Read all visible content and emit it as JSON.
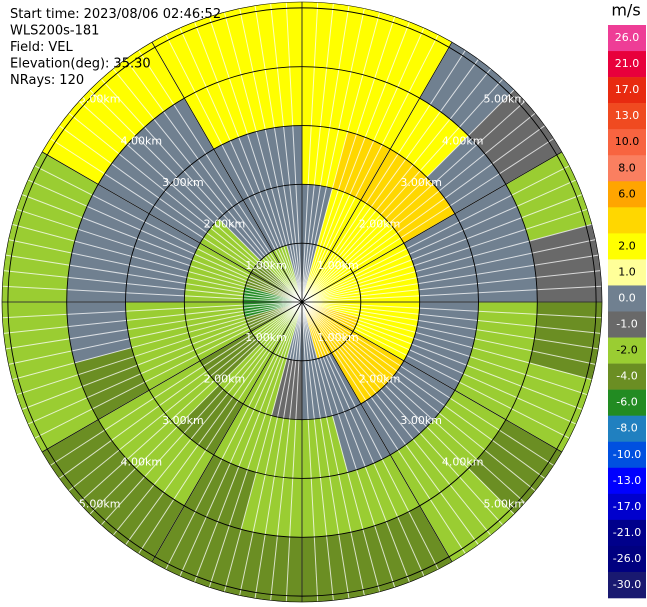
{
  "chart_data": {
    "type": "ppi",
    "info": [
      {
        "label": "Start time:",
        "value": "2023/08/06 02:46:52"
      },
      {
        "label": "",
        "value": "WLS200s-181"
      },
      {
        "label": "Field:",
        "value": "VEL"
      },
      {
        "label": "Elevation(deg):",
        "value": "35.30"
      },
      {
        "label": "NRays:",
        "value": 120
      }
    ],
    "rings": [
      {
        "value": 1,
        "label": "1.00km"
      },
      {
        "value": 2,
        "label": "2.00km"
      },
      {
        "value": 3,
        "label": "3.00km"
      },
      {
        "value": 4,
        "label": "4.00km"
      },
      {
        "value": 5,
        "label": "5.00km"
      }
    ],
    "field": {
      "azimuths": [
        0,
        15,
        30,
        45,
        60,
        75,
        90,
        105,
        120,
        135,
        150,
        165,
        180,
        195,
        210,
        225,
        240,
        255,
        270,
        285,
        300,
        315,
        330,
        345
      ],
      "range_km": [
        0,
        1,
        2,
        3,
        4,
        5.1
      ],
      "values": [
        [
          0.5,
          0.5,
          2.5,
          2.5,
          2.5
        ],
        [
          2.5,
          2.5,
          5,
          2.5,
          2.5
        ],
        [
          2.5,
          2.5,
          5,
          2.5,
          0.5
        ],
        [
          2.5,
          2.5,
          5,
          0.5,
          -0.5
        ],
        [
          2.5,
          2.5,
          0.5,
          0.5,
          -1.5
        ],
        [
          2.5,
          2.5,
          0.5,
          0.5,
          -0.5
        ],
        [
          2.5,
          2.5,
          0.5,
          -1.5,
          -3
        ],
        [
          5,
          2.5,
          0.5,
          -1.5,
          -1.5
        ],
        [
          5,
          5,
          0.5,
          -1.5,
          -3
        ],
        [
          5,
          5,
          0.5,
          -1.5,
          -1.5
        ],
        [
          5,
          0.5,
          0.5,
          -1.5,
          -3
        ],
        [
          0.5,
          0.5,
          -1.5,
          -1.5,
          -3
        ],
        [
          0.5,
          -0.5,
          -1.5,
          -1.5,
          -3
        ],
        [
          -1.5,
          -1.5,
          -1.5,
          -3,
          -3
        ],
        [
          -1.5,
          -1.5,
          -3,
          -1.5,
          -3
        ],
        [
          -1.5,
          -3,
          -1.5,
          -1.5,
          -3
        ],
        [
          -3,
          -1.5,
          -1.5,
          -3,
          -1.5
        ],
        [
          -5,
          -1.5,
          -1.5,
          0.5,
          -1.5
        ],
        [
          -5,
          -1.5,
          0.5,
          0.5,
          -1.5
        ],
        [
          -3,
          -1.5,
          0.5,
          0.5,
          -1.5
        ],
        [
          -3,
          -1.5,
          0.5,
          0.5,
          2.5
        ],
        [
          -1.5,
          0.5,
          0.5,
          0.5,
          2.5
        ],
        [
          -1.5,
          0.5,
          0.5,
          2.5,
          2.5
        ],
        [
          0.5,
          0.5,
          0.5,
          2.5,
          2.5
        ]
      ]
    },
    "colorbar": {
      "label": "m/s",
      "levels": [
        26,
        21,
        17,
        13,
        10,
        8,
        6,
        4,
        2,
        1,
        0,
        -1,
        -2,
        -4,
        -6,
        -8,
        -10,
        -13,
        -17,
        -21,
        -26,
        -30
      ],
      "colors": [
        "#ee3d96",
        "#e8003c",
        "#e82a10",
        "#f04a20",
        "#f86440",
        "#fa7f60",
        "#ffa500",
        "#ffd700",
        "#ffff00",
        "#ffff99",
        "#708090",
        "#696969",
        "#9acd32",
        "#6b8e23",
        "#228b22",
        "#2080c0",
        "#0050e0",
        "#0000ff",
        "#0000cd",
        "#00008b",
        "#000080",
        "#191970"
      ],
      "ticks": [
        {
          "value": 26,
          "label": "26.0"
        },
        {
          "value": 21,
          "label": "21.0"
        },
        {
          "value": 17,
          "label": "17.0"
        },
        {
          "value": 13,
          "label": "13.0"
        },
        {
          "value": 10,
          "label": "10.0"
        },
        {
          "value": 8,
          "label": "8.0"
        },
        {
          "value": 6,
          "label": "6.0"
        },
        {
          "value": 2,
          "label": "2.0"
        },
        {
          "value": 1,
          "label": "1.0"
        },
        {
          "value": 0,
          "label": "0.0"
        },
        {
          "value": -1,
          "label": "-1.0"
        },
        {
          "value": -2,
          "label": "-2.0"
        },
        {
          "value": -4,
          "label": "-4.0"
        },
        {
          "value": -6,
          "label": "-6.0"
        },
        {
          "value": -8,
          "label": "-8.0"
        },
        {
          "value": -10,
          "label": "-10.0"
        },
        {
          "value": -13,
          "label": "-13.0"
        },
        {
          "value": -17,
          "label": "-17.0"
        },
        {
          "value": -21,
          "label": "-21.0"
        },
        {
          "value": -26,
          "label": "-26.0"
        },
        {
          "value": -30,
          "label": "-30.0"
        }
      ]
    }
  }
}
